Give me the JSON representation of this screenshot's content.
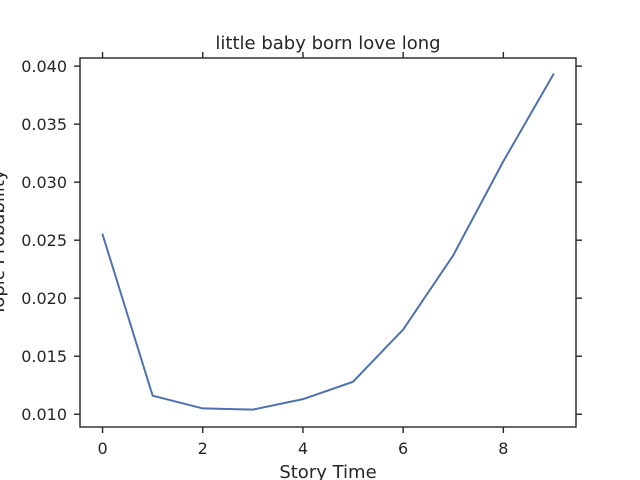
{
  "chart_data": {
    "type": "line",
    "title": "little baby born love long",
    "xlabel": "Story Time",
    "ylabel": "Topic Probability",
    "x": [
      0,
      1,
      2,
      3,
      4,
      5,
      6,
      7,
      8,
      9
    ],
    "series": [
      {
        "values": [
          0.0255,
          0.0116,
          0.0105,
          0.0104,
          0.0113,
          0.0128,
          0.0173,
          0.0237,
          0.0318,
          0.0393
        ],
        "color": "#4c72b0"
      }
    ],
    "xlim": [
      -0.45,
      9.45
    ],
    "ylim": [
      0.0089,
      0.0407
    ],
    "xticks": [
      0,
      2,
      4,
      6,
      8
    ],
    "xtick_labels": [
      "0",
      "2",
      "4",
      "6",
      "8"
    ],
    "yticks": [
      0.01,
      0.015,
      0.02,
      0.025,
      0.03,
      0.035,
      0.04
    ],
    "ytick_labels": [
      "0.010",
      "0.015",
      "0.020",
      "0.025",
      "0.030",
      "0.035",
      "0.040"
    ],
    "grid": false,
    "ticks_mirrored": true
  }
}
